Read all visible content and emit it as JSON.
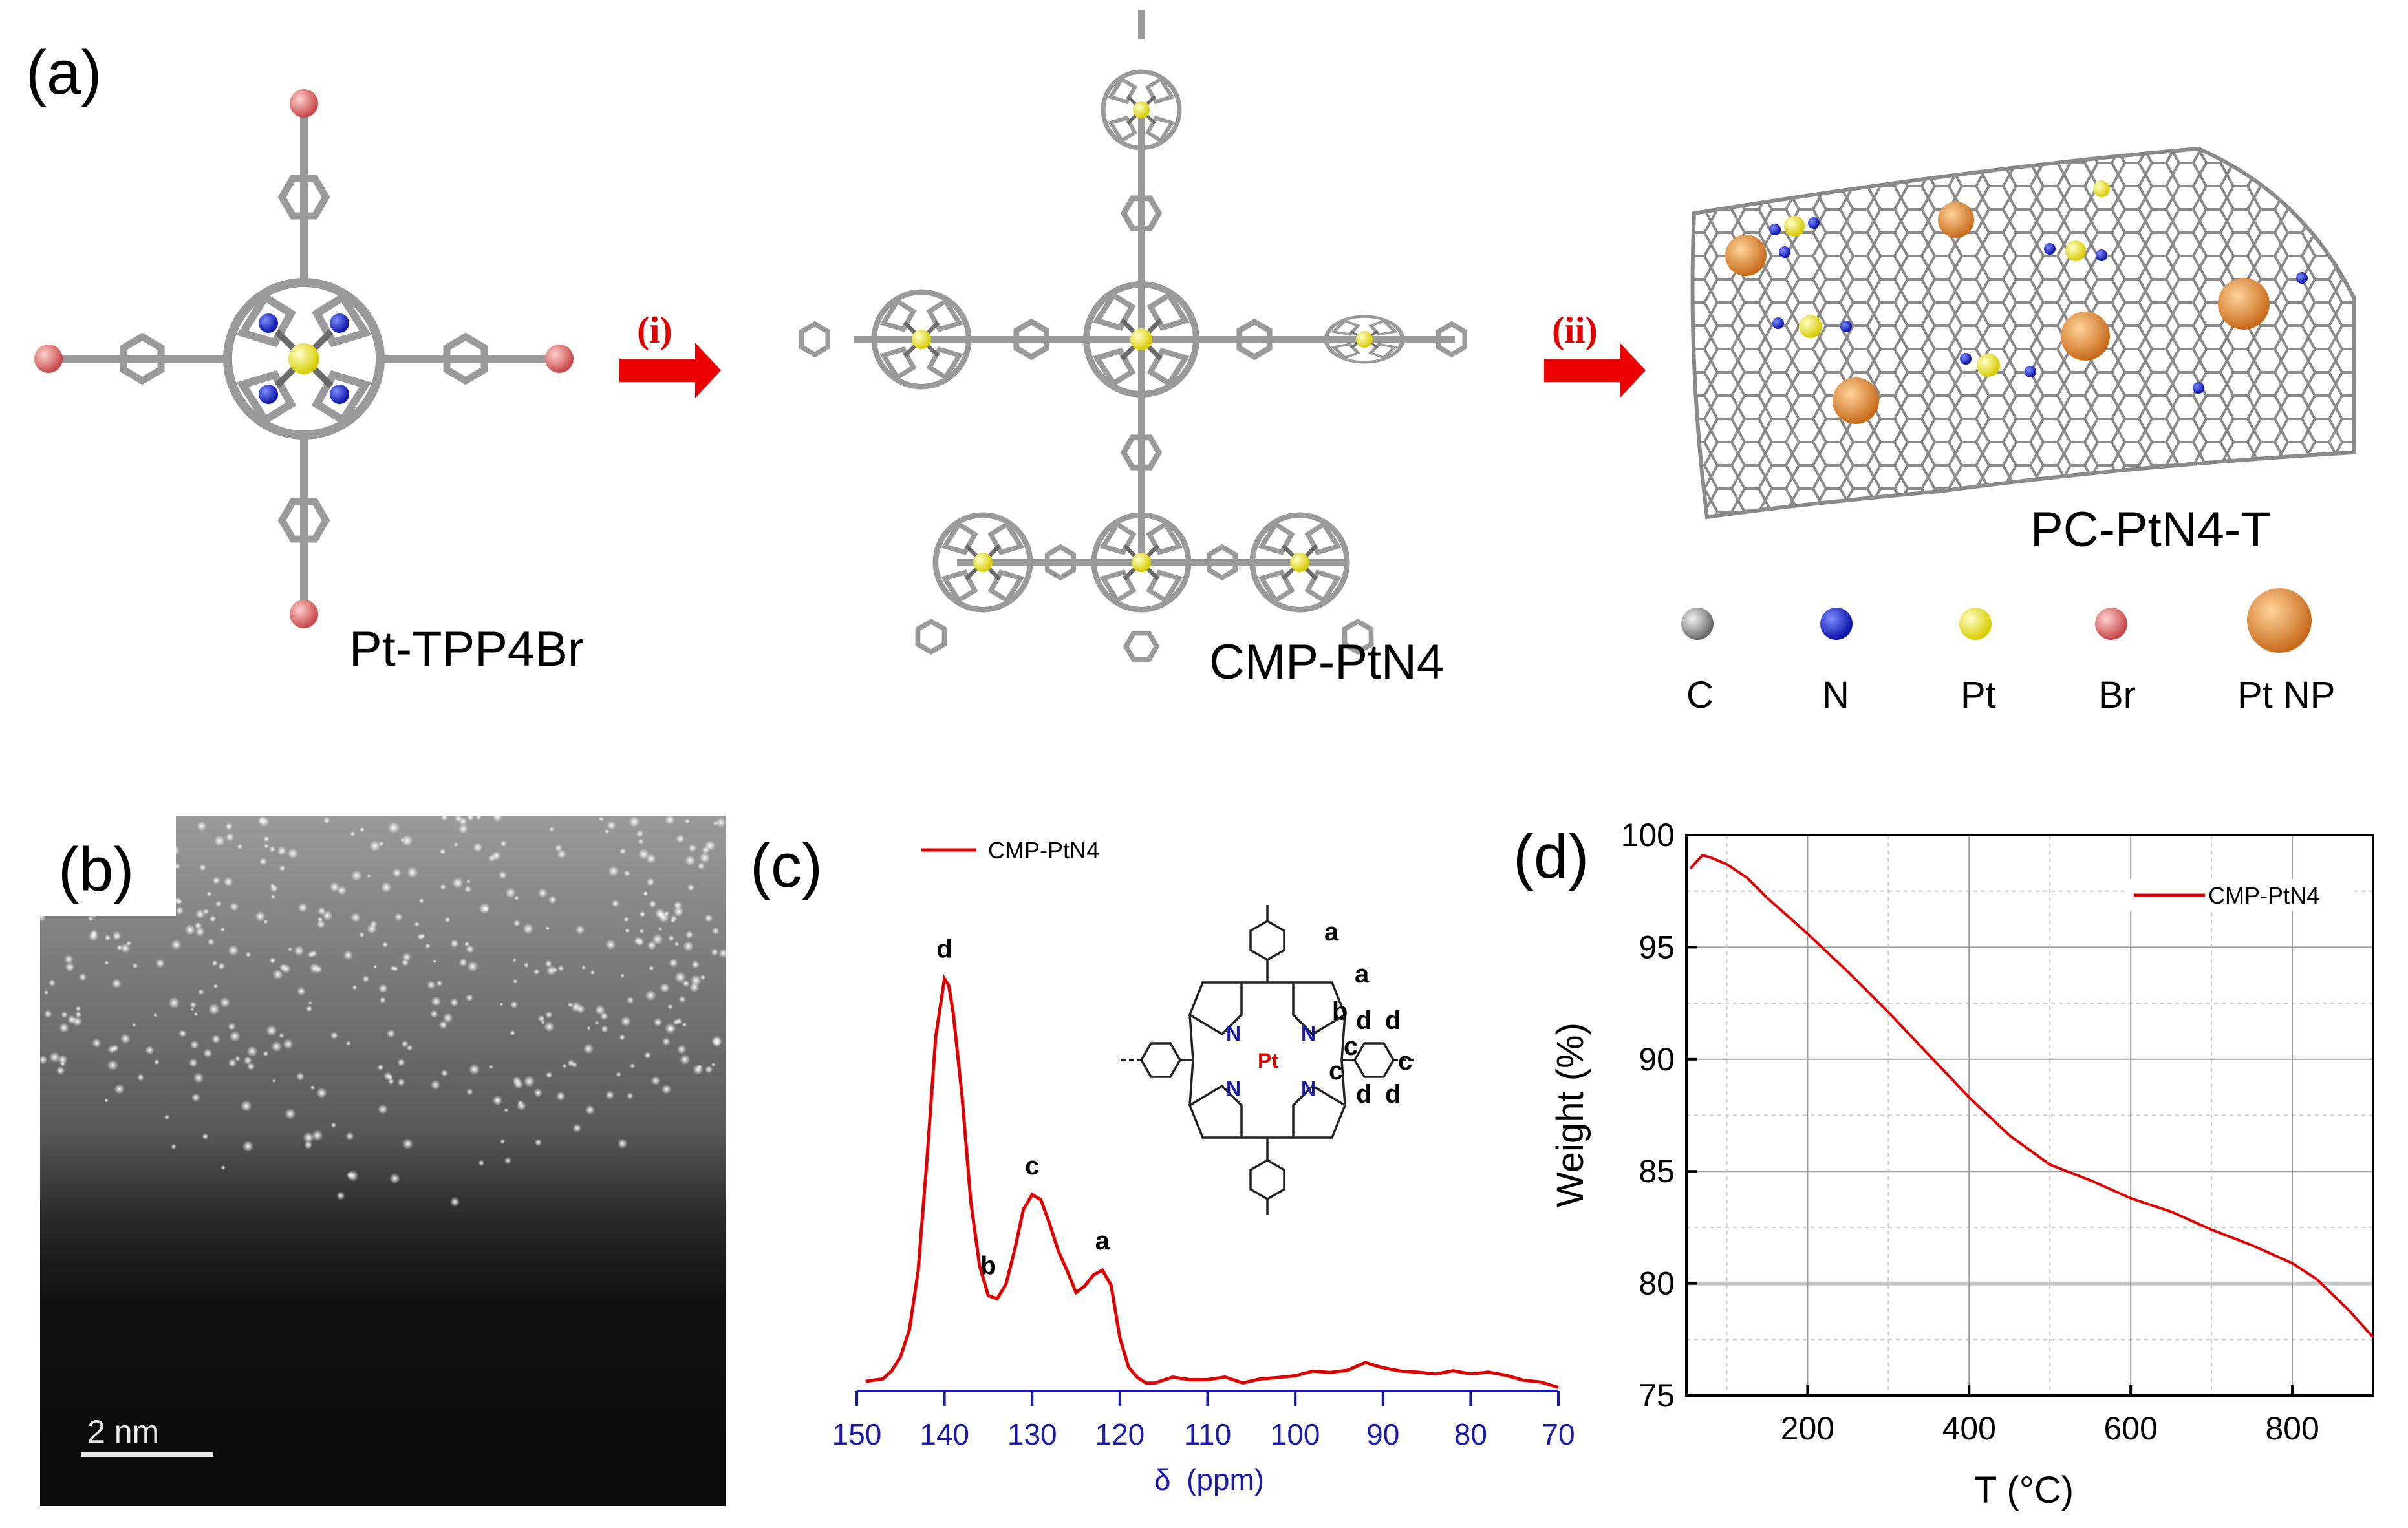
{
  "panels": {
    "a": {
      "label": "(a)",
      "molecule_1": "Pt-TPP4Br",
      "molecule_2": "CMP-PtN4",
      "molecule_3": "PC-PtN4-T",
      "step_1": "(i)",
      "step_2": "(ii)",
      "legend": [
        {
          "label": "C",
          "color": "#8c8c8c"
        },
        {
          "label": "N",
          "color": "#1a2ad8"
        },
        {
          "label": "Pt",
          "color": "#f2ec00"
        },
        {
          "label": "Br",
          "color": "#e06060"
        },
        {
          "label": "Pt NP",
          "color": "#f0a050"
        }
      ]
    },
    "b": {
      "label": "(b)",
      "scale_bar": "2 nm"
    },
    "c": {
      "label": "(c)",
      "legend": "CMP-PtN4",
      "structure": {
        "metal": "Pt",
        "nitrogen": "N",
        "site_labels": [
          "a",
          "a",
          "b",
          "c",
          "c",
          "c",
          "d",
          "d",
          "d",
          "d"
        ]
      }
    },
    "d": {
      "label": "(d)",
      "legend": "CMP-PtN4"
    }
  },
  "chart_data": [
    {
      "panel": "c",
      "type": "line",
      "title": "",
      "xlabel": "δ",
      "xlabel_unit": "(ppm)",
      "ylabel": "",
      "xlim": [
        150,
        70
      ],
      "x_reversed": true,
      "ylim": [
        0,
        1.0
      ],
      "yticks_shown": false,
      "xticks": [
        150,
        140,
        130,
        120,
        110,
        100,
        90,
        80,
        70
      ],
      "series": [
        {
          "name": "CMP-PtN4",
          "color": "#e00000",
          "x": [
            149,
            147,
            146,
            145,
            144,
            143,
            142,
            141,
            140,
            139.5,
            139,
            138,
            137,
            136,
            135,
            134,
            133,
            132,
            131,
            130,
            129,
            128,
            127,
            126,
            125,
            124,
            123,
            122,
            121,
            120,
            119,
            118,
            117,
            116,
            114,
            112,
            110,
            108,
            106,
            104,
            102,
            100,
            98,
            96,
            94,
            92,
            91,
            90,
            88,
            86,
            84,
            82,
            80,
            78,
            76,
            74,
            72,
            70
          ],
          "values": [
            0.02,
            0.03,
            0.05,
            0.08,
            0.14,
            0.28,
            0.55,
            0.85,
            0.99,
            0.97,
            0.9,
            0.7,
            0.45,
            0.3,
            0.23,
            0.22,
            0.25,
            0.33,
            0.43,
            0.47,
            0.46,
            0.4,
            0.33,
            0.28,
            0.23,
            0.25,
            0.28,
            0.29,
            0.25,
            0.12,
            0.05,
            0.03,
            0.02,
            0.02,
            0.03,
            0.02,
            0.02,
            0.03,
            0.02,
            0.03,
            0.03,
            0.03,
            0.04,
            0.04,
            0.05,
            0.07,
            0.06,
            0.05,
            0.04,
            0.04,
            0.04,
            0.05,
            0.04,
            0.04,
            0.03,
            0.02,
            0.02,
            0.01
          ]
        }
      ],
      "annotations": [
        {
          "text": "d",
          "x": 140
        },
        {
          "text": "b",
          "x": 135
        },
        {
          "text": "c",
          "x": 130
        },
        {
          "text": "a",
          "x": 122
        }
      ]
    },
    {
      "panel": "d",
      "type": "line",
      "title": "",
      "xlabel": "T (°C)",
      "ylabel": "Weight (%)",
      "xlim": [
        50,
        900
      ],
      "ylim": [
        75,
        100
      ],
      "xticks": [
        200,
        400,
        600,
        800
      ],
      "yticks": [
        75,
        80,
        85,
        90,
        95,
        100
      ],
      "grid": true,
      "legend_position": "top-right",
      "series": [
        {
          "name": "CMP-PtN4",
          "color": "#e00000",
          "x": [
            55,
            62,
            70,
            80,
            100,
            125,
            150,
            175,
            200,
            250,
            300,
            350,
            400,
            450,
            500,
            550,
            600,
            650,
            700,
            750,
            800,
            830,
            850,
            870,
            900
          ],
          "values": [
            98.5,
            98.8,
            99.1,
            99.0,
            98.7,
            98.1,
            97.2,
            96.4,
            95.6,
            93.9,
            92.1,
            90.2,
            88.3,
            86.6,
            85.3,
            84.6,
            83.8,
            83.2,
            82.4,
            81.7,
            80.9,
            80.2,
            79.5,
            78.8,
            77.6
          ]
        }
      ]
    }
  ]
}
